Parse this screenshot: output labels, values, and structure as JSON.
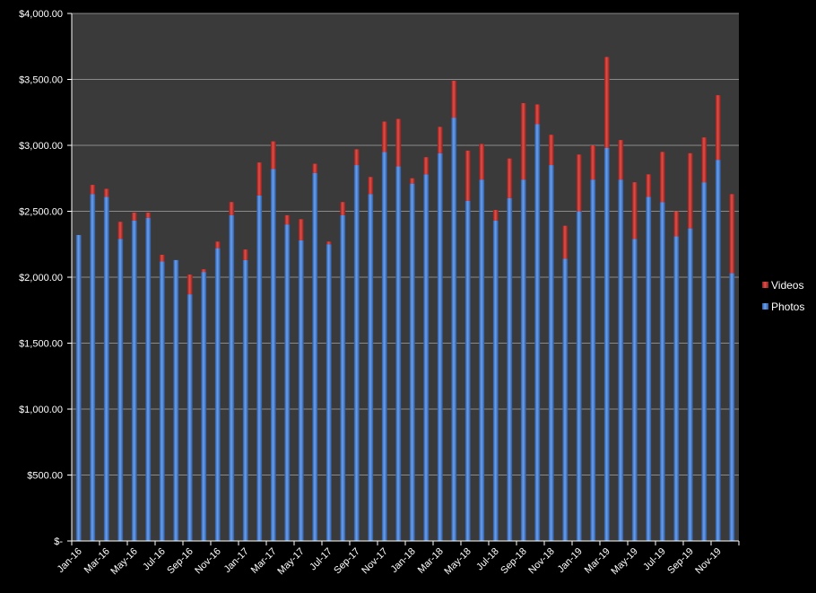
{
  "chart_data": {
    "type": "bar",
    "stacked": true,
    "categories": [
      "Jan-16",
      "Feb-16",
      "Mar-16",
      "Apr-16",
      "May-16",
      "Jun-16",
      "Jul-16",
      "Aug-16",
      "Sep-16",
      "Oct-16",
      "Nov-16",
      "Dec-16",
      "Jan-17",
      "Feb-17",
      "Mar-17",
      "Apr-17",
      "May-17",
      "Jun-17",
      "Jul-17",
      "Aug-17",
      "Sep-17",
      "Oct-17",
      "Nov-17",
      "Dec-17",
      "Jan-18",
      "Feb-18",
      "Mar-18",
      "Apr-18",
      "May-18",
      "Jun-18",
      "Jul-18",
      "Aug-18",
      "Sep-18",
      "Oct-18",
      "Nov-18",
      "Dec-18",
      "Jan-19",
      "Feb-19",
      "Mar-19",
      "Apr-19",
      "May-19",
      "Jun-19",
      "Jul-19",
      "Aug-19",
      "Sep-19",
      "Oct-19",
      "Nov-19",
      "Dec-19"
    ],
    "x_tick_labels": [
      "Jan-16",
      "Mar-16",
      "May-16",
      "Jul-16",
      "Sep-16",
      "Nov-16",
      "Jan-17",
      "Mar-17",
      "May-17",
      "Jul-17",
      "Sep-17",
      "Nov-17",
      "Jan-18",
      "Mar-18",
      "May-18",
      "Jul-18",
      "Sep-18",
      "Nov-18",
      "Jan-19",
      "Mar-19",
      "May-19",
      "Jul-19",
      "Sep-19",
      "Nov-19"
    ],
    "series": [
      {
        "name": "Photos",
        "values": [
          2320,
          2630,
          2610,
          2290,
          2430,
          2450,
          2120,
          2130,
          1870,
          2040,
          2220,
          2470,
          2130,
          2620,
          2820,
          2400,
          2280,
          2790,
          2250,
          2470,
          2850,
          2630,
          2950,
          2840,
          2710,
          2780,
          2940,
          3210,
          2580,
          2740,
          2430,
          2600,
          2740,
          3160,
          2850,
          2140,
          2500,
          2740,
          2980,
          2740,
          2290,
          2610,
          2570,
          2310,
          2370,
          2720,
          2890,
          2030
        ]
      },
      {
        "name": "Videos",
        "values": [
          0,
          70,
          60,
          130,
          60,
          40,
          50,
          0,
          150,
          20,
          50,
          100,
          80,
          250,
          210,
          70,
          160,
          70,
          20,
          100,
          120,
          130,
          230,
          360,
          40,
          130,
          200,
          280,
          380,
          270,
          80,
          300,
          580,
          150,
          230,
          250,
          430,
          260,
          690,
          300,
          430,
          170,
          380,
          190,
          570,
          340,
          490,
          600
        ]
      }
    ],
    "ylim": [
      0,
      4000
    ],
    "y_tick_labels": [
      "$-",
      "$500.00",
      "$1,000.00",
      "$1,500.00",
      "$2,000.00",
      "$2,500.00",
      "$3,000.00",
      "$3,500.00",
      "$4,000.00"
    ],
    "grid": true,
    "legend": "right",
    "colors": {
      "Photos": "#4a7fd4",
      "Videos": "#c9302c",
      "plot_bg": "#3a3a3a",
      "page_bg": "#000000"
    }
  }
}
